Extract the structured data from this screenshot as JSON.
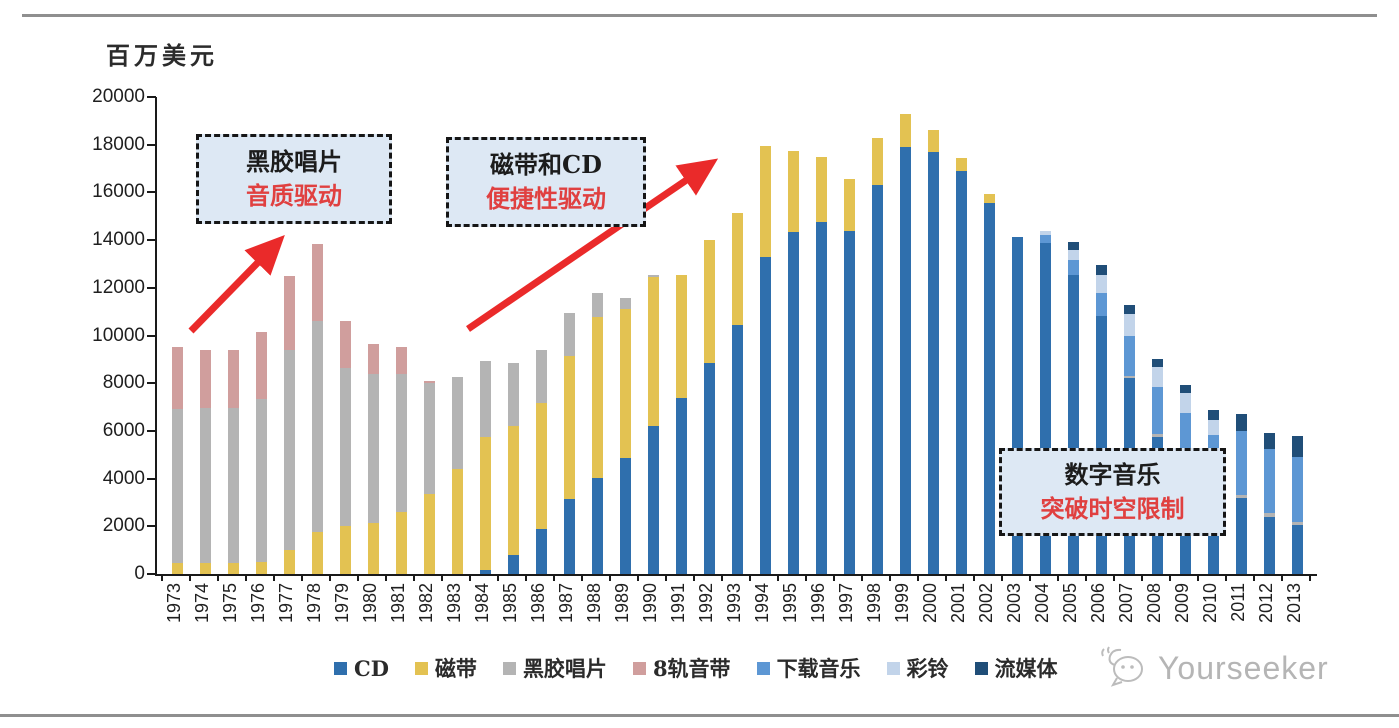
{
  "unit_label": "百万美元",
  "watermark": "Yourseeker",
  "annotations": [
    {
      "line1": "黑胶唱片",
      "line2": "音质驱动"
    },
    {
      "line1": "磁带和CD",
      "line2": "便捷性驱动"
    },
    {
      "line1": "数字音乐",
      "line2": "突破时空限制"
    }
  ],
  "colors": {
    "arrow_red": "#ea2a2a",
    "annotation_red": "#e04040",
    "callout_bg": "#dde8f4",
    "axis": "#1a1a1a"
  },
  "chart_data": {
    "type": "bar",
    "stacked": true,
    "title": "",
    "ylabel": "百万美元",
    "xlabel": "",
    "ylim": [
      0,
      20000
    ],
    "ytick_interval": 2000,
    "grid": false,
    "legend_position": "bottom",
    "categories": [
      1973,
      1974,
      1975,
      1976,
      1977,
      1978,
      1979,
      1980,
      1981,
      1982,
      1983,
      1984,
      1985,
      1986,
      1987,
      1988,
      1989,
      1990,
      1991,
      1992,
      1993,
      1994,
      1995,
      1996,
      1997,
      1998,
      1999,
      2000,
      2001,
      2002,
      2003,
      2004,
      2005,
      2006,
      2007,
      2008,
      2009,
      2010,
      2011,
      2012,
      2013
    ],
    "series": [
      {
        "name": "CD",
        "color": "#2f6fad",
        "values": [
          0,
          0,
          0,
          0,
          0,
          0,
          0,
          0,
          0,
          0,
          0,
          150,
          800,
          1900,
          3130,
          4040,
          4850,
          6200,
          7400,
          8860,
          10450,
          13300,
          14350,
          14750,
          14400,
          16300,
          17900,
          17700,
          16900,
          15550,
          14150,
          13900,
          12550,
          10800,
          8200,
          5750,
          5000,
          4200,
          3200,
          2400,
          2050
        ]
      },
      {
        "name": "磁带",
        "color": "#e3c252",
        "values": [
          450,
          450,
          450,
          500,
          1000,
          1750,
          2000,
          2150,
          2600,
          3350,
          4400,
          5600,
          5400,
          5250,
          6000,
          6750,
          6250,
          6250,
          5130,
          5140,
          4700,
          4650,
          3400,
          2750,
          2150,
          2000,
          1400,
          900,
          550,
          400,
          0,
          0,
          0,
          0,
          0,
          0,
          0,
          0,
          0,
          0,
          0
        ]
      },
      {
        "name": "黑胶唱片",
        "color": "#b4b4b4",
        "values": [
          6450,
          6500,
          6500,
          6850,
          8400,
          8850,
          6650,
          6250,
          5800,
          4650,
          3850,
          3200,
          2650,
          2250,
          1820,
          1010,
          460,
          80,
          0,
          0,
          0,
          0,
          0,
          0,
          0,
          0,
          0,
          0,
          0,
          0,
          0,
          0,
          0,
          0,
          120,
          140,
          120,
          110,
          120,
          140,
          140
        ]
      },
      {
        "name": "8轨音带",
        "color": "#d09e9d",
        "values": [
          2600,
          2450,
          2450,
          2800,
          3100,
          3250,
          1950,
          1250,
          1100,
          100,
          0,
          0,
          0,
          0,
          0,
          0,
          0,
          0,
          0,
          0,
          0,
          0,
          0,
          0,
          0,
          0,
          0,
          0,
          0,
          0,
          0,
          0,
          0,
          0,
          0,
          0,
          0,
          0,
          0,
          0,
          0
        ]
      },
      {
        "name": "下载音乐",
        "color": "#5d97d4",
        "values": [
          0,
          0,
          0,
          0,
          0,
          0,
          0,
          0,
          0,
          0,
          0,
          0,
          0,
          0,
          0,
          0,
          0,
          0,
          0,
          0,
          0,
          0,
          0,
          0,
          0,
          0,
          0,
          0,
          0,
          0,
          0,
          300,
          620,
          980,
          1650,
          1950,
          1640,
          1500,
          2680,
          2690,
          2700
        ]
      },
      {
        "name": "彩铃",
        "color": "#c2d4ea",
        "values": [
          0,
          0,
          0,
          0,
          0,
          0,
          0,
          0,
          0,
          0,
          0,
          0,
          0,
          0,
          0,
          0,
          0,
          0,
          0,
          0,
          0,
          0,
          0,
          0,
          0,
          0,
          0,
          0,
          0,
          0,
          0,
          200,
          420,
          760,
          950,
          840,
          820,
          640,
          0,
          0,
          0
        ]
      },
      {
        "name": "流媒体",
        "color": "#204e78",
        "values": [
          0,
          0,
          0,
          0,
          0,
          0,
          0,
          0,
          0,
          0,
          0,
          0,
          0,
          0,
          0,
          0,
          0,
          0,
          0,
          0,
          0,
          0,
          0,
          0,
          0,
          0,
          0,
          0,
          0,
          0,
          0,
          0,
          330,
          400,
          350,
          350,
          360,
          420,
          700,
          700,
          890
        ]
      }
    ]
  }
}
